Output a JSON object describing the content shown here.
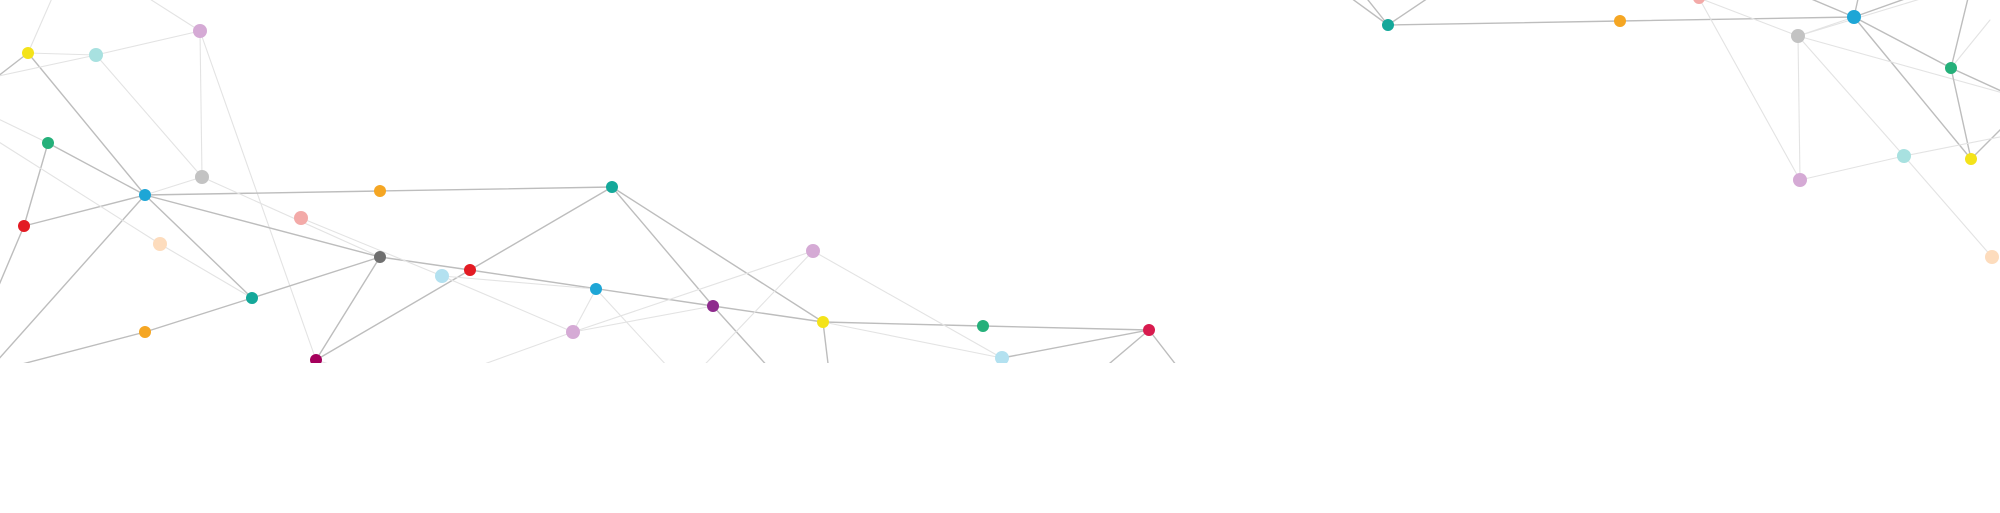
{
  "palette": {
    "background": "#ffffff",
    "edge_dark": "#bdbdbd",
    "edge_light": "#e3e3e3",
    "blue": "#1ea6d6",
    "teal": "#14a89a",
    "green": "#25b07a",
    "yellow": "#f4e31a",
    "orange": "#f5a623",
    "red": "#e31b23",
    "crimson": "#d81b4e",
    "purple": "#8e2a8d",
    "magenta": "#a5005c",
    "gray": "#6f6f6f",
    "light_gray": "#c3c3c3",
    "mint": "#a8e1e0",
    "pink_light": "#f3aaa8",
    "peach": "#fddcbd",
    "lilac": "#d5aad5",
    "sky": "#b3e1f0"
  }
}
